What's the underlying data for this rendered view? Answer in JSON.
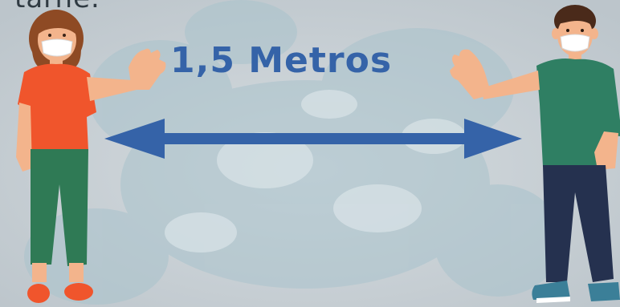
{
  "caption_top": "tarne.",
  "distance_label": "1,5 Metros",
  "colors": {
    "background": "#c7ced3",
    "virus_texture": "#a9c3cc",
    "label": "#3563a8",
    "arrow": "#3563a8",
    "woman_shirt": "#f0552c",
    "woman_pants": "#2f7a55",
    "woman_hair": "#8e4a24",
    "man_shirt": "#2f7f63",
    "man_pants": "#25314f",
    "man_hair": "#4a2a1a",
    "skin": "#f3b48c",
    "mask": "#ffffff"
  },
  "figures": [
    {
      "name": "woman",
      "icon": "person-wearing-mask-icon"
    },
    {
      "name": "man",
      "icon": "person-wearing-mask-icon"
    }
  ],
  "arrow_icon": "double-headed-arrow-icon"
}
